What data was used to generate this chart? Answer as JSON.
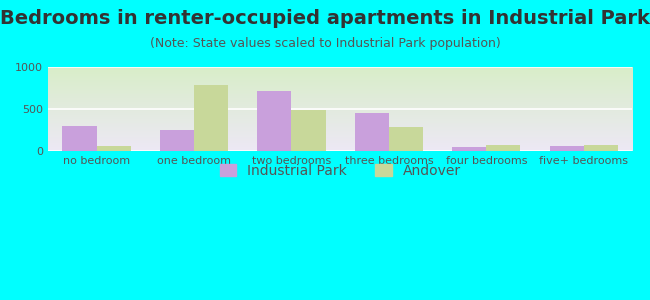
{
  "title": "Bedrooms in renter-occupied apartments in Industrial Park",
  "subtitle": "(Note: State values scaled to Industrial Park population)",
  "categories": [
    "no bedroom",
    "one bedroom",
    "two bedrooms",
    "three bedrooms",
    "four bedrooms",
    "five+ bedrooms"
  ],
  "industrial_park": [
    300,
    245,
    710,
    455,
    45,
    60
  ],
  "andover": [
    65,
    790,
    490,
    285,
    70,
    70
  ],
  "ip_color": "#c9a0dc",
  "andover_color": "#c8d89a",
  "background_color": "#00ffff",
  "ylim": [
    0,
    1000
  ],
  "yticks": [
    0,
    500,
    1000
  ],
  "bar_width": 0.35,
  "title_fontsize": 14,
  "subtitle_fontsize": 9,
  "tick_fontsize": 8,
  "legend_fontsize": 10,
  "legend_labels": [
    "Industrial Park",
    "Andover"
  ],
  "gradient_top": "#d8eec8",
  "gradient_bottom": "#ede8f5"
}
